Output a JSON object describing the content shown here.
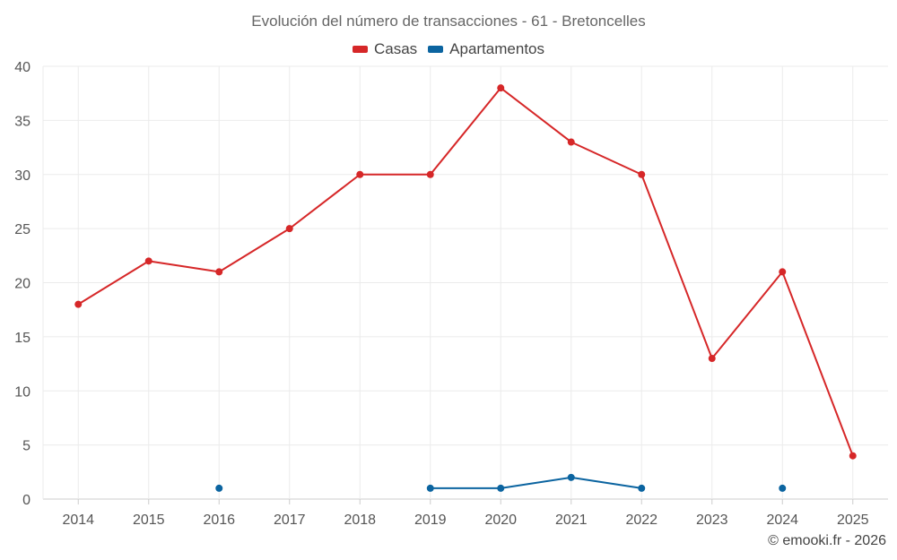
{
  "title": "Evolución del número de transacciones - 61 - Bretoncelles",
  "credit": "© emooki.fr - 2026",
  "colors": {
    "casas": "#d62728",
    "apartamentos": "#0b64a0",
    "grid": "#ebebeb",
    "axis": "#cccccc"
  },
  "chart_data": {
    "type": "line",
    "title": "Evolución del número de transacciones - 61 - Bretoncelles",
    "xlabel": "",
    "ylabel": "",
    "categories": [
      "2014",
      "2015",
      "2016",
      "2017",
      "2018",
      "2019",
      "2020",
      "2021",
      "2022",
      "2023",
      "2024",
      "2025"
    ],
    "ylim": [
      0,
      40
    ],
    "yticks": [
      "0",
      "5",
      "10",
      "15",
      "20",
      "25",
      "30",
      "35",
      "40"
    ],
    "grid": true,
    "legend_position": "top-center",
    "series": [
      {
        "name": "Casas",
        "color": "#d62728",
        "values": [
          18,
          22,
          21,
          25,
          30,
          30,
          38,
          33,
          30,
          13,
          21,
          4
        ]
      },
      {
        "name": "Apartamentos",
        "color": "#0b64a0",
        "values": [
          null,
          null,
          1,
          null,
          null,
          1,
          1,
          2,
          1,
          null,
          1,
          null
        ]
      }
    ]
  }
}
